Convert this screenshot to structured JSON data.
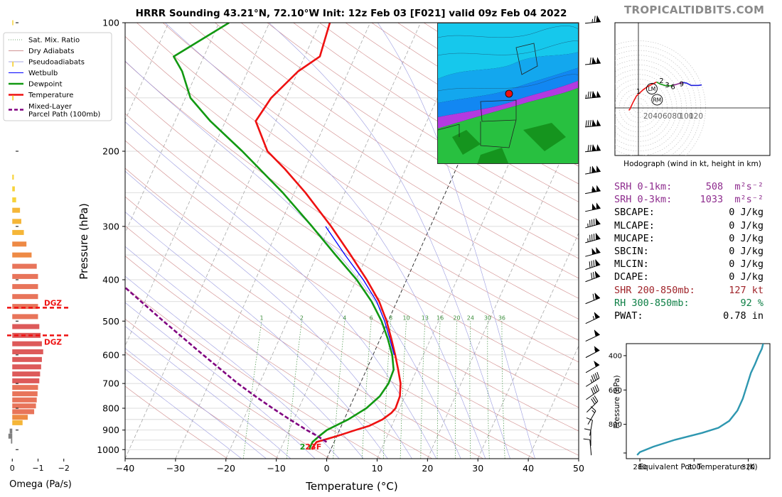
{
  "brand": "TROPICALTIDBITS.COM",
  "chart_data": [
    {
      "type": "line",
      "subtype": "skew-t",
      "title": "HRRR Sounding 43.21°N, 72.10°W Init: 12z Feb 03 [F021] valid 09z Feb 04 2022",
      "xlabel": "Temperature (°C)",
      "ylabel": "Pressure (hPa)",
      "xlim": [
        -40,
        50
      ],
      "ylim": [
        1050,
        100
      ],
      "y_scale": "log",
      "x_ticks": [
        -40,
        -30,
        -20,
        -10,
        0,
        10,
        20,
        30,
        40,
        50
      ],
      "x_tick_labels": [
        "−40",
        "−30",
        "−20",
        "−10",
        "0",
        "10",
        "20",
        "30",
        "40",
        "50"
      ],
      "y_ticks": [
        100,
        200,
        300,
        400,
        500,
        600,
        700,
        800,
        900,
        1000
      ],
      "legend": {
        "position": "top-left",
        "entries": [
          {
            "label": "Sat. Mix. Ratio",
            "color": "#4b8b4b",
            "style": "dotted"
          },
          {
            "label": "Dry Adiabats",
            "color": "#c07070",
            "style": "solid"
          },
          {
            "label": "Pseudoadiabats",
            "color": "#8888d8",
            "style": "solid"
          },
          {
            "label": "Wetbulb",
            "color": "#0000ff",
            "style": "solid"
          },
          {
            "label": "Dewpoint",
            "color": "#129912",
            "style": "solid"
          },
          {
            "label": "Temperature",
            "color": "#ee1111",
            "style": "solid"
          },
          {
            "label": "Mixed-Layer\nParcel Path (100mb)",
            "color": "#800080",
            "style": "dashed"
          }
        ]
      },
      "series": [
        {
          "name": "Temperature",
          "color": "#ee1111",
          "points": [
            [
              1000,
              -3.7
            ],
            [
              990,
              -3.8
            ],
            [
              960,
              -3.5
            ],
            [
              930,
              0
            ],
            [
              900,
              3.2
            ],
            [
              880,
              5.5
            ],
            [
              850,
              7.6
            ],
            [
              820,
              8.8
            ],
            [
              800,
              9.2
            ],
            [
              750,
              9.0
            ],
            [
              700,
              8.0
            ],
            [
              650,
              6.3
            ],
            [
              600,
              4.4
            ],
            [
              550,
              2.2
            ],
            [
              500,
              -0.3
            ],
            [
              450,
              -3.5
            ],
            [
              400,
              -7.9
            ],
            [
              350,
              -13.3
            ],
            [
              300,
              -19.7
            ],
            [
              250,
              -27.8
            ],
            [
              220,
              -34
            ],
            [
              200,
              -39
            ],
            [
              170,
              -44
            ],
            [
              150,
              -43
            ],
            [
              130,
              -40
            ],
            [
              120,
              -37
            ],
            [
              100,
              -38
            ]
          ]
        },
        {
          "name": "Dewpoint",
          "color": "#129912",
          "points": [
            [
              1000,
              -4.2
            ],
            [
              990,
              -4.3
            ],
            [
              960,
              -4.3
            ],
            [
              930,
              -3.5
            ],
            [
              900,
              -2.5
            ],
            [
              850,
              0.8
            ],
            [
              800,
              3.4
            ],
            [
              750,
              5.0
            ],
            [
              700,
              5.6
            ],
            [
              650,
              5.4
            ],
            [
              600,
              3.8
            ],
            [
              550,
              1.5
            ],
            [
              500,
              -1.3
            ],
            [
              450,
              -5.0
            ],
            [
              400,
              -9.9
            ],
            [
              350,
              -16.3
            ],
            [
              300,
              -23.5
            ],
            [
              250,
              -32.3
            ],
            [
              220,
              -39
            ],
            [
              200,
              -44
            ],
            [
              170,
              -53
            ],
            [
              150,
              -59
            ],
            [
              130,
              -63
            ],
            [
              120,
              -66
            ],
            [
              100,
              -58
            ]
          ]
        },
        {
          "name": "Wetbulb",
          "color": "#0000ff",
          "points": [
            [
              600,
              4.2
            ],
            [
              550,
              1.9
            ],
            [
              500,
              -0.7
            ],
            [
              450,
              -4.0
            ],
            [
              400,
              -8.6
            ],
            [
              350,
              -14.4
            ],
            [
              300,
              -20.8
            ]
          ]
        },
        {
          "name": "Mixed-Layer\nParcel Path (100mb)",
          "color": "#800080",
          "points": [
            [
              960,
              -1.5
            ],
            [
              930,
              -3.8
            ],
            [
              900,
              -6.5
            ],
            [
              850,
              -10.8
            ],
            [
              800,
              -15.2
            ],
            [
              750,
              -19.7
            ],
            [
              700,
              -24.3
            ],
            [
              600,
              -33.7
            ],
            [
              500,
              -44.6
            ],
            [
              400,
              -57.6
            ],
            [
              300,
              -75
            ],
            [
              260,
              -84
            ]
          ]
        }
      ],
      "dry_adiabat_thetas": [
        250,
        260,
        270,
        280,
        290,
        300,
        310,
        320,
        330,
        340,
        350,
        360,
        370,
        380,
        390,
        400,
        410,
        420,
        430,
        440,
        450,
        460,
        470,
        480,
        490,
        500
      ],
      "pseudoadiabat_start_temps": [
        -20,
        -15,
        -10,
        -5,
        0,
        5,
        10,
        15,
        20,
        25,
        30,
        35,
        40
      ],
      "mixing_ratios": [
        1,
        2,
        4,
        6,
        8,
        10,
        13,
        16,
        20,
        24,
        30,
        36
      ],
      "mixing_ratio_labels": [
        "1",
        "2",
        "4",
        "6",
        "8",
        "10",
        "13",
        "16",
        "20",
        "24",
        "30",
        "36"
      ],
      "surface_label": "23F",
      "wind_barbs": [
        {
          "p": 100,
          "dir": 265,
          "kt": 75
        },
        {
          "p": 125,
          "dir": 265,
          "kt": 120
        },
        {
          "p": 150,
          "dir": 265,
          "kt": 135
        },
        {
          "p": 175,
          "dir": 265,
          "kt": 140
        },
        {
          "p": 200,
          "dir": 265,
          "kt": 130
        },
        {
          "p": 225,
          "dir": 260,
          "kt": 120
        },
        {
          "p": 250,
          "dir": 260,
          "kt": 105
        },
        {
          "p": 275,
          "dir": 258,
          "kt": 100
        },
        {
          "p": 300,
          "dir": 255,
          "kt": 95
        },
        {
          "p": 325,
          "dir": 255,
          "kt": 95
        },
        {
          "p": 350,
          "dir": 255,
          "kt": 100
        },
        {
          "p": 375,
          "dir": 252,
          "kt": 90
        },
        {
          "p": 400,
          "dir": 250,
          "kt": 80
        },
        {
          "p": 450,
          "dir": 248,
          "kt": 70
        },
        {
          "p": 500,
          "dir": 245,
          "kt": 65
        },
        {
          "p": 550,
          "dir": 245,
          "kt": 60
        },
        {
          "p": 600,
          "dir": 242,
          "kt": 55
        },
        {
          "p": 650,
          "dir": 240,
          "kt": 50
        },
        {
          "p": 700,
          "dir": 238,
          "kt": 45
        },
        {
          "p": 750,
          "dir": 235,
          "kt": 40
        },
        {
          "p": 800,
          "dir": 225,
          "kt": 30
        },
        {
          "p": 850,
          "dir": 210,
          "kt": 15
        },
        {
          "p": 900,
          "dir": 190,
          "kt": 10
        },
        {
          "p": 950,
          "dir": 180,
          "kt": 8
        },
        {
          "p": 1000,
          "dir": 175,
          "kt": 10
        }
      ]
    },
    {
      "type": "bar",
      "orientation": "horizontal",
      "xlabel": "Omega (Pa/s)",
      "xlim": [
        0.2,
        -2.2
      ],
      "x_ticks": [
        0,
        -1,
        -2
      ],
      "x_tick_labels": [
        "0",
        "−1",
        "−2"
      ],
      "dgz_label": "DGZ",
      "dgz_bounds": [
        465,
        540
      ],
      "bars": [
        {
          "p": 100,
          "v": -0.04
        },
        {
          "p": 125,
          "v": -0.05
        },
        {
          "p": 150,
          "v": -0.05
        },
        {
          "p": 230,
          "v": -0.06
        },
        {
          "p": 245,
          "v": -0.1
        },
        {
          "p": 260,
          "v": -0.15
        },
        {
          "p": 275,
          "v": -0.3
        },
        {
          "p": 292,
          "v": -0.35
        },
        {
          "p": 310,
          "v": -0.45
        },
        {
          "p": 330,
          "v": -0.55
        },
        {
          "p": 350,
          "v": -0.75
        },
        {
          "p": 372,
          "v": -0.95
        },
        {
          "p": 393,
          "v": -1.0
        },
        {
          "p": 415,
          "v": -1.0
        },
        {
          "p": 438,
          "v": -1.0
        },
        {
          "p": 462,
          "v": -1.0
        },
        {
          "p": 488,
          "v": -1.0
        },
        {
          "p": 515,
          "v": -1.05
        },
        {
          "p": 540,
          "v": -1.1
        },
        {
          "p": 565,
          "v": -1.15
        },
        {
          "p": 590,
          "v": -1.2
        },
        {
          "p": 615,
          "v": -1.15
        },
        {
          "p": 640,
          "v": -1.12
        },
        {
          "p": 665,
          "v": -1.08
        },
        {
          "p": 690,
          "v": -1.05
        },
        {
          "p": 715,
          "v": -1.0
        },
        {
          "p": 740,
          "v": -0.98
        },
        {
          "p": 765,
          "v": -0.95
        },
        {
          "p": 790,
          "v": -0.92
        },
        {
          "p": 815,
          "v": -0.85
        },
        {
          "p": 840,
          "v": -0.6
        },
        {
          "p": 865,
          "v": -0.4
        },
        {
          "p": 905,
          "v": 0.1
        },
        {
          "p": 930,
          "v": 0.15
        },
        {
          "p": 955,
          "v": 0.05
        }
      ]
    },
    {
      "type": "line",
      "subtype": "hodograph",
      "xlabel": "Hodograph (wind in kt, height in km)",
      "ring_labels": [
        "20",
        "40",
        "60",
        "80",
        "100",
        "120"
      ],
      "height_labels": [
        "1",
        "2",
        "3",
        "6",
        "9"
      ],
      "markers": [
        "LM",
        "RM"
      ],
      "segments": [
        {
          "color": "#ee1111",
          "points": [
            [
              -20,
              -5
            ],
            [
              -18,
              -3
            ],
            [
              -12,
              10
            ],
            [
              -4,
              25
            ],
            [
              10,
              38
            ],
            [
              20,
              45
            ],
            [
              38,
              54
            ]
          ]
        },
        {
          "color": "#129912",
          "points": [
            [
              38,
              54
            ],
            [
              45,
              50
            ],
            [
              55,
              47
            ],
            [
              65,
              46
            ],
            [
              72,
              47
            ]
          ]
        },
        {
          "color": "#8e2c8e",
          "points": [
            [
              72,
              47
            ],
            [
              85,
              51
            ],
            [
              92,
              53
            ]
          ]
        },
        {
          "color": "#1f1fdd",
          "points": [
            [
              92,
              53
            ],
            [
              100,
              52
            ],
            [
              110,
              47
            ],
            [
              125,
              47
            ],
            [
              132,
              48
            ]
          ]
        }
      ]
    },
    {
      "type": "line",
      "xlabel": "Equivalent Pot. Temperature (K)",
      "ylabel": "Pressure (hPa)",
      "xlim": [
        275,
        328
      ],
      "ylim": [
        1000,
        330
      ],
      "x_ticks": [
        280,
        300,
        320
      ],
      "y_ticks": [
        400,
        600,
        800
      ],
      "series": [
        {
          "name": "theta-e",
          "color": "#2e97b0",
          "points": [
            [
              979,
              279
            ],
            [
              962,
              280
            ],
            [
              930,
              285
            ],
            [
              890,
              293
            ],
            [
              850,
              303
            ],
            [
              820,
              309
            ],
            [
              780,
              313
            ],
            [
              720,
              316
            ],
            [
              650,
              318
            ],
            [
              600,
              319
            ],
            [
              500,
              321
            ],
            [
              450,
              322.5
            ],
            [
              400,
              323.8
            ],
            [
              360,
              325
            ],
            [
              330,
              325.5
            ]
          ]
        }
      ]
    }
  ],
  "stats": [
    {
      "label": "SRH 0-1km:",
      "value": "508",
      "unit": "m²s⁻²",
      "color": "purple"
    },
    {
      "label": "SRH 0-3km:",
      "value": "1033",
      "unit": "m²s⁻²",
      "color": "purple"
    },
    {
      "label": "SBCAPE:",
      "value": "0 J/kg",
      "unit": "",
      "color": "black"
    },
    {
      "label": "MLCAPE:",
      "value": "0 J/kg",
      "unit": "",
      "color": "black"
    },
    {
      "label": "MUCAPE:",
      "value": "0 J/kg",
      "unit": "",
      "color": "black"
    },
    {
      "label": "SBCIN:",
      "value": "0 J/kg",
      "unit": "",
      "color": "black"
    },
    {
      "label": "MLCIN:",
      "value": "0 J/kg",
      "unit": "",
      "color": "black"
    },
    {
      "label": "DCAPE:",
      "value": "0 J/kg",
      "unit": "",
      "color": "black"
    },
    {
      "label": "SHR 200-850mb:",
      "value": "127 kt",
      "unit": "",
      "color": "brown"
    },
    {
      "label": "RH 300-850mb:",
      "value": "92 %",
      "unit": "",
      "color": "green"
    },
    {
      "label": "PWAT:",
      "value": "0.78 in",
      "unit": "",
      "color": "black"
    }
  ]
}
